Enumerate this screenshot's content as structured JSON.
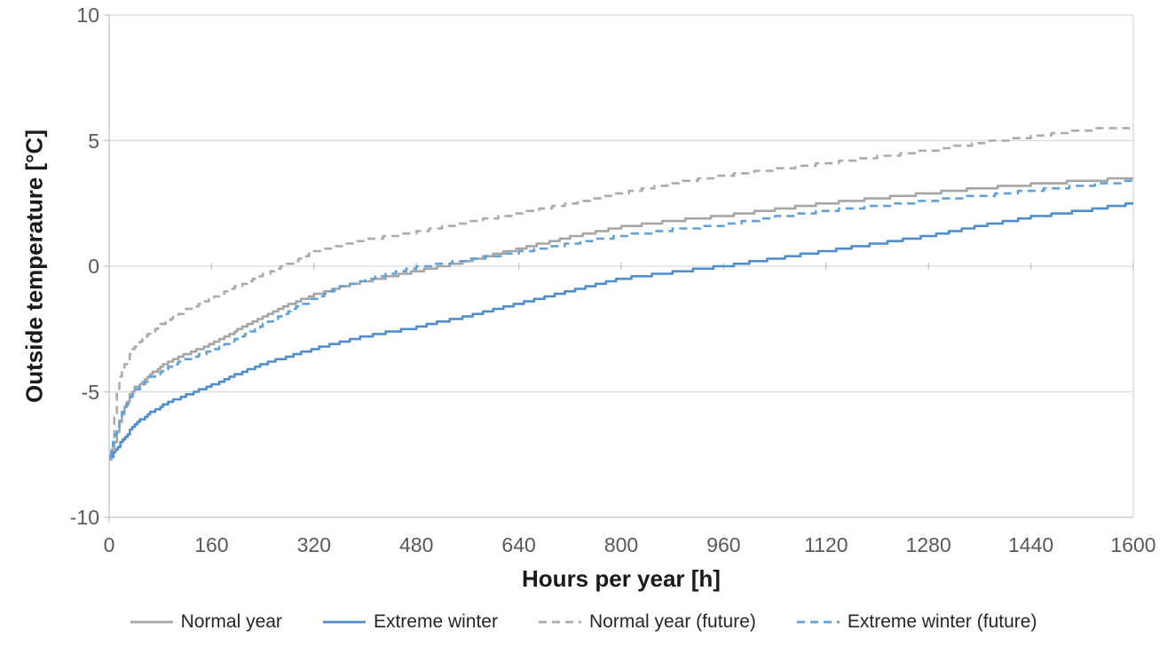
{
  "chart_data": {
    "type": "line",
    "title": "",
    "xlabel": "Hours per year [h]",
    "ylabel": "Outside temperature [°C]",
    "xlim": [
      0,
      1600
    ],
    "ylim": [
      -10,
      10
    ],
    "x_tick_values": [
      0,
      160,
      320,
      480,
      640,
      800,
      960,
      1120,
      1280,
      1440,
      1600
    ],
    "x_tick_labels": [
      "0",
      "160",
      "320",
      "480",
      "640",
      "800",
      "960",
      "1120",
      "1280",
      "1440",
      "1600"
    ],
    "y_tick_values": [
      10,
      5,
      0,
      -5,
      -10
    ],
    "y_tick_labels": [
      "10",
      "5",
      "0",
      "-5",
      "-10"
    ],
    "grid": "horizontal",
    "legend_position": "bottom",
    "colors": {
      "gridline": "#D9D9D9",
      "axis_line": "#C6C6C6",
      "tick_label": "#595959",
      "axis_title": "#1a1a1a",
      "legend_text": "#262626"
    },
    "series": [
      {
        "name": "Normal year",
        "color": "#A6A6A6",
        "dash": "solid",
        "points": [
          [
            0,
            -7.6
          ],
          [
            8,
            -7.0
          ],
          [
            16,
            -6.2
          ],
          [
            24,
            -5.6
          ],
          [
            32,
            -5.15
          ],
          [
            40,
            -4.85
          ],
          [
            60,
            -4.4
          ],
          [
            80,
            -4.0
          ],
          [
            120,
            -3.5
          ],
          [
            160,
            -3.1
          ],
          [
            200,
            -2.55
          ],
          [
            240,
            -2.05
          ],
          [
            280,
            -1.55
          ],
          [
            320,
            -1.15
          ],
          [
            360,
            -0.85
          ],
          [
            400,
            -0.6
          ],
          [
            440,
            -0.4
          ],
          [
            480,
            -0.2
          ],
          [
            520,
            0.0
          ],
          [
            560,
            0.2
          ],
          [
            600,
            0.45
          ],
          [
            640,
            0.7
          ],
          [
            720,
            1.15
          ],
          [
            800,
            1.55
          ],
          [
            880,
            1.8
          ],
          [
            960,
            2.0
          ],
          [
            1040,
            2.25
          ],
          [
            1120,
            2.5
          ],
          [
            1200,
            2.7
          ],
          [
            1280,
            2.9
          ],
          [
            1360,
            3.1
          ],
          [
            1440,
            3.25
          ],
          [
            1520,
            3.4
          ],
          [
            1600,
            3.5
          ]
        ]
      },
      {
        "name": "Extreme winter",
        "color": "#4E8ECF",
        "dash": "solid",
        "points": [
          [
            0,
            -7.7
          ],
          [
            10,
            -7.3
          ],
          [
            25,
            -6.8
          ],
          [
            40,
            -6.3
          ],
          [
            60,
            -5.9
          ],
          [
            80,
            -5.6
          ],
          [
            100,
            -5.35
          ],
          [
            120,
            -5.15
          ],
          [
            160,
            -4.75
          ],
          [
            200,
            -4.3
          ],
          [
            240,
            -3.9
          ],
          [
            280,
            -3.6
          ],
          [
            320,
            -3.3
          ],
          [
            360,
            -3.05
          ],
          [
            400,
            -2.8
          ],
          [
            440,
            -2.6
          ],
          [
            480,
            -2.45
          ],
          [
            520,
            -2.2
          ],
          [
            560,
            -2.0
          ],
          [
            600,
            -1.75
          ],
          [
            640,
            -1.5
          ],
          [
            720,
            -1.0
          ],
          [
            800,
            -0.5
          ],
          [
            880,
            -0.25
          ],
          [
            960,
            0.0
          ],
          [
            1040,
            0.3
          ],
          [
            1120,
            0.6
          ],
          [
            1200,
            0.9
          ],
          [
            1280,
            1.2
          ],
          [
            1360,
            1.6
          ],
          [
            1440,
            1.95
          ],
          [
            1520,
            2.2
          ],
          [
            1600,
            2.5
          ]
        ]
      },
      {
        "name": "Normal year (future)",
        "color": "#ABABAB",
        "dash": "dashed",
        "points": [
          [
            0,
            -7.7
          ],
          [
            5,
            -7.4
          ],
          [
            8,
            -6.0
          ],
          [
            12,
            -5.0
          ],
          [
            16,
            -4.4
          ],
          [
            24,
            -3.9
          ],
          [
            32,
            -3.5
          ],
          [
            40,
            -3.2
          ],
          [
            60,
            -2.7
          ],
          [
            80,
            -2.35
          ],
          [
            120,
            -1.75
          ],
          [
            160,
            -1.3
          ],
          [
            200,
            -0.8
          ],
          [
            240,
            -0.35
          ],
          [
            280,
            0.1
          ],
          [
            320,
            0.55
          ],
          [
            360,
            0.8
          ],
          [
            400,
            1.05
          ],
          [
            440,
            1.2
          ],
          [
            480,
            1.35
          ],
          [
            560,
            1.75
          ],
          [
            640,
            2.1
          ],
          [
            720,
            2.5
          ],
          [
            800,
            2.9
          ],
          [
            880,
            3.3
          ],
          [
            960,
            3.6
          ],
          [
            1040,
            3.85
          ],
          [
            1120,
            4.1
          ],
          [
            1200,
            4.35
          ],
          [
            1280,
            4.6
          ],
          [
            1360,
            4.9
          ],
          [
            1440,
            5.15
          ],
          [
            1520,
            5.4
          ],
          [
            1560,
            5.5
          ],
          [
            1600,
            5.55
          ]
        ]
      },
      {
        "name": "Extreme winter (future)",
        "color": "#62A0D8",
        "dash": "dashed",
        "points": [
          [
            0,
            -7.6
          ],
          [
            6,
            -7.0
          ],
          [
            12,
            -6.4
          ],
          [
            20,
            -5.8
          ],
          [
            30,
            -5.3
          ],
          [
            40,
            -4.95
          ],
          [
            60,
            -4.5
          ],
          [
            80,
            -4.2
          ],
          [
            120,
            -3.7
          ],
          [
            160,
            -3.35
          ],
          [
            200,
            -2.9
          ],
          [
            240,
            -2.35
          ],
          [
            280,
            -1.8
          ],
          [
            320,
            -1.3
          ],
          [
            360,
            -0.85
          ],
          [
            400,
            -0.55
          ],
          [
            440,
            -0.3
          ],
          [
            480,
            -0.05
          ],
          [
            520,
            0.1
          ],
          [
            560,
            0.25
          ],
          [
            600,
            0.4
          ],
          [
            640,
            0.55
          ],
          [
            720,
            0.9
          ],
          [
            800,
            1.2
          ],
          [
            880,
            1.45
          ],
          [
            960,
            1.65
          ],
          [
            1040,
            1.95
          ],
          [
            1120,
            2.2
          ],
          [
            1200,
            2.4
          ],
          [
            1280,
            2.6
          ],
          [
            1360,
            2.8
          ],
          [
            1440,
            3.0
          ],
          [
            1520,
            3.2
          ],
          [
            1600,
            3.4
          ]
        ]
      }
    ]
  }
}
